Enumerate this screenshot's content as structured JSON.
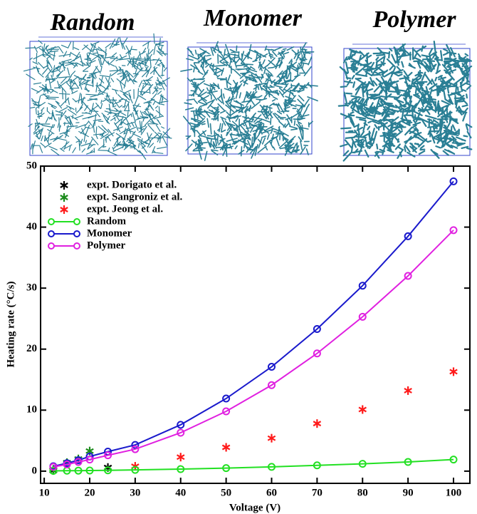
{
  "panel_labels": [
    "Random",
    "Monomer",
    "Polymer"
  ],
  "chart_data": {
    "type": "line",
    "x_label": "Voltage (V)",
    "y_label": "Heating rate (°C/s)",
    "xlim": [
      9.2,
      103.6
    ],
    "xticks": [
      10,
      20,
      30,
      40,
      50,
      60,
      70,
      80,
      90,
      100
    ],
    "ylim": [
      -2,
      50
    ],
    "yticks": [
      0,
      10,
      20,
      30,
      40,
      50
    ],
    "legend": "upper-left",
    "series": [
      {
        "name": "expt. Dorigato et al.",
        "color": "#000000",
        "marker": "asterisk",
        "x": [
          12,
          24
        ],
        "values": [
          0.1,
          0.6
        ]
      },
      {
        "name": "expt. Sangroniz et al.",
        "color": "#1a8a1a",
        "marker": "asterisk",
        "x": [
          12,
          15,
          17.5,
          20
        ],
        "values": [
          0.3,
          1.4,
          2.0,
          3.3
        ]
      },
      {
        "name": "expt. Jeong et al.",
        "color": "#ff1a1a",
        "marker": "asterisk",
        "x": [
          30,
          40,
          50,
          60,
          70,
          80,
          90,
          100
        ],
        "values": [
          0.8,
          2.3,
          3.9,
          5.4,
          7.8,
          10.1,
          13.2,
          16.3
        ]
      },
      {
        "name": "Random",
        "color": "#22e022",
        "marker": "circle-line",
        "x": [
          12,
          15,
          17.5,
          20,
          24,
          30,
          40,
          50,
          60,
          70,
          80,
          90,
          100
        ],
        "values": [
          0.05,
          0.07,
          0.08,
          0.1,
          0.13,
          0.2,
          0.33,
          0.5,
          0.7,
          0.95,
          1.2,
          1.5,
          1.9
        ]
      },
      {
        "name": "Monomer",
        "color": "#1a1acc",
        "marker": "circle-line",
        "x": [
          12,
          15,
          17.5,
          20,
          24,
          30,
          40,
          50,
          60,
          70,
          80,
          90,
          100
        ],
        "values": [
          0.8,
          1.3,
          1.8,
          2.4,
          3.2,
          4.3,
          7.6,
          11.9,
          17.1,
          23.3,
          30.4,
          38.5,
          47.5
        ]
      },
      {
        "name": "Polymer",
        "color": "#e020e0",
        "marker": "circle-line",
        "x": [
          12,
          15,
          17.5,
          20,
          24,
          30,
          40,
          50,
          60,
          70,
          80,
          90,
          100
        ],
        "values": [
          0.7,
          1.1,
          1.5,
          1.9,
          2.6,
          3.6,
          6.3,
          9.8,
          14.1,
          19.3,
          25.3,
          32.0,
          39.5
        ]
      }
    ]
  }
}
